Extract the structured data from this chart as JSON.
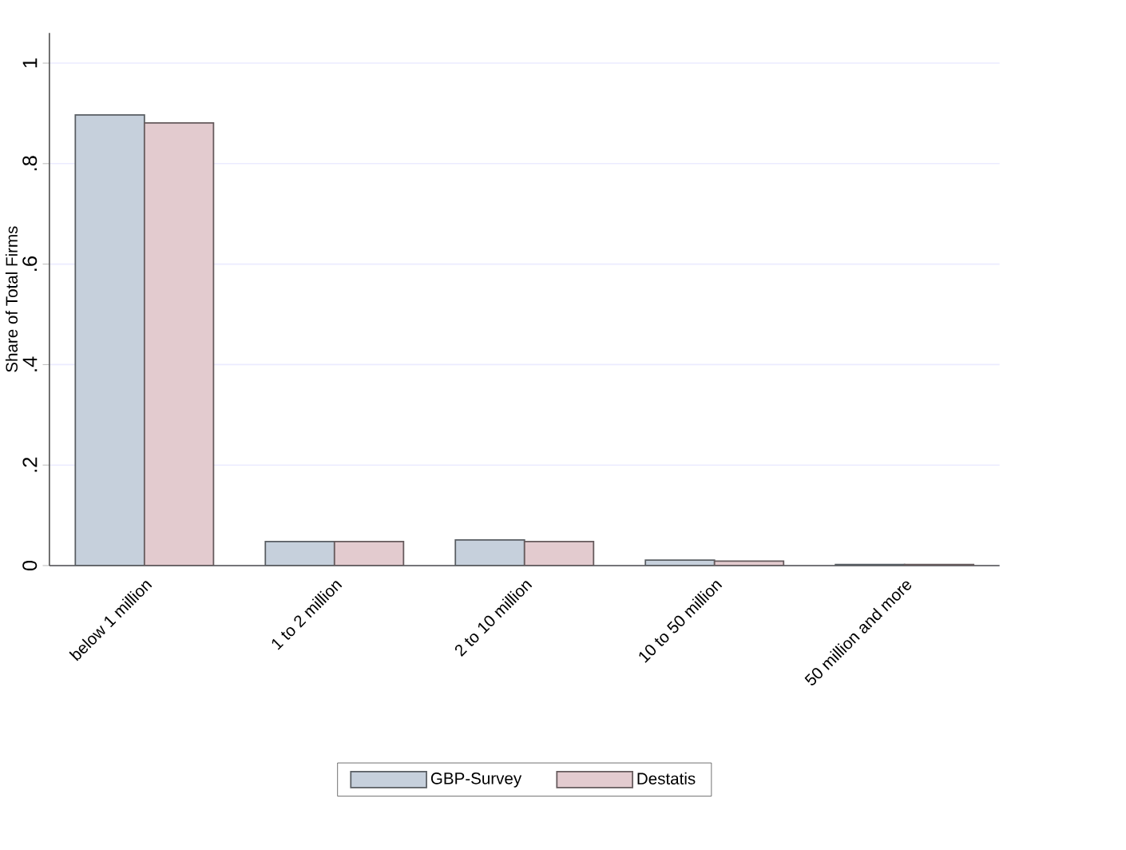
{
  "chart_data": {
    "type": "bar",
    "ylabel": "Share of Total Firms",
    "categories": [
      "below 1 million",
      "1 to 2 million",
      "2 to 10 million",
      "10  to 50 million",
      "50 million and more"
    ],
    "series": [
      {
        "name": "GBP-Survey",
        "color": "#c6d0dc",
        "values": [
          0.897,
          0.048,
          0.051,
          0.011,
          0.002
        ]
      },
      {
        "name": "Destatis",
        "color": "#e3cbcf",
        "values": [
          0.881,
          0.048,
          0.048,
          0.009,
          0.002
        ]
      }
    ],
    "ylim": [
      0,
      1.06
    ],
    "yticks": [
      0,
      {
        "value": 0.2,
        "label": ".2"
      },
      {
        "value": 0.4,
        "label": ".4"
      },
      {
        "value": 0.6,
        "label": ".6"
      },
      {
        "value": 0.8,
        "label": ".8"
      },
      1
    ],
    "grid": "y",
    "legend": "bottom"
  }
}
